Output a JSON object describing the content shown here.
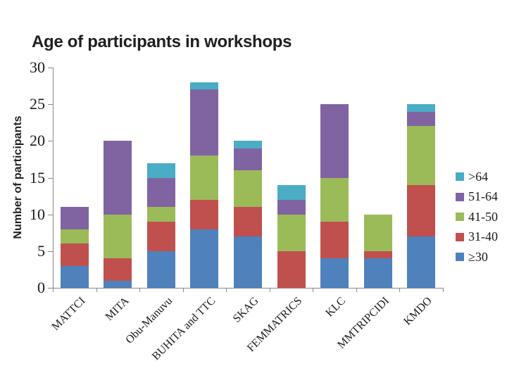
{
  "chart_data": {
    "type": "bar",
    "stacked": true,
    "title": "Age of participants in workshops",
    "xlabel": "",
    "ylabel": "Number of participants",
    "ylim": [
      0,
      30
    ],
    "yticks": [
      0,
      5,
      10,
      15,
      20,
      25,
      30
    ],
    "grid": false,
    "legend_position": "right",
    "x_label_rotation_deg": -45,
    "categories": [
      "MATTCI",
      "MITA",
      "Obu-Manuvu",
      "BUHITA and TTC",
      "SKAG",
      "FEMMATRICS",
      "KLC",
      "MMTRIPCIDI",
      "KMDO"
    ],
    "series": [
      {
        "name": "≥30",
        "color": "#4F81BD",
        "values": [
          3,
          1,
          5,
          8,
          7,
          0,
          4,
          4,
          7
        ]
      },
      {
        "name": "31-40",
        "color": "#C0504D",
        "values": [
          3,
          3,
          4,
          4,
          4,
          5,
          5,
          1,
          7
        ]
      },
      {
        "name": "41-50",
        "color": "#9BBB59",
        "values": [
          2,
          6,
          2,
          6,
          5,
          5,
          6,
          5,
          8
        ]
      },
      {
        "name": "51-64",
        "color": "#8064A2",
        "values": [
          3,
          10,
          4,
          9,
          3,
          2,
          10,
          0,
          2
        ]
      },
      {
        "name": ">64",
        "color": "#4BACC6",
        "values": [
          0,
          0,
          2,
          1,
          1,
          2,
          0,
          0,
          1
        ]
      }
    ],
    "legend_order_top_to_bottom": [
      ">64",
      "51-64",
      "41-50",
      "31-40",
      "≥30"
    ],
    "category_totals": [
      11,
      20,
      17,
      28,
      20,
      14,
      25,
      10,
      25
    ]
  },
  "colors": {
    "axis": "#898989",
    "text": "#1f1f1f",
    "background": "#FFFFFF"
  }
}
